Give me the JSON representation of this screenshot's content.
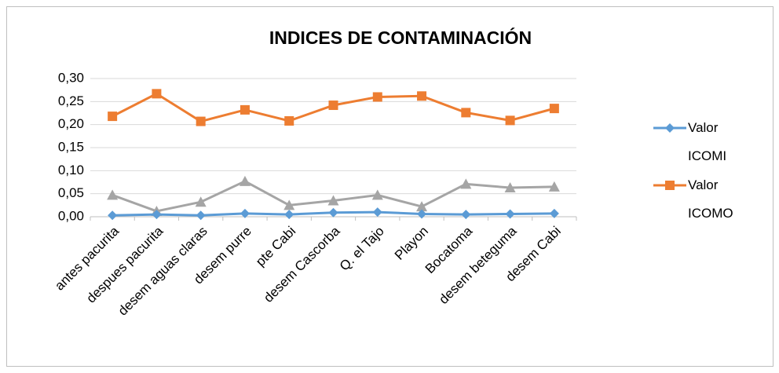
{
  "chart_data": {
    "type": "line",
    "title": "INDICES DE CONTAMINACIÓN",
    "categories": [
      "antes pacurita",
      "despues pacurita",
      "desem aguas claras",
      "desem purre",
      "pte Cabi",
      "desem Cascorba",
      "Q. el Tajo",
      "Playon",
      "Bocatoma",
      "desem beteguma",
      "desem Cabi"
    ],
    "series": [
      {
        "name": "Valor ICOMI",
        "color": "#5b9bd5",
        "marker": "diamond",
        "values": [
          0.003,
          0.005,
          0.003,
          0.007,
          0.005,
          0.009,
          0.01,
          0.006,
          0.005,
          0.006,
          0.007
        ]
      },
      {
        "name": "Valor ICOMO",
        "color": "#ed7d31",
        "marker": "square",
        "values": [
          0.218,
          0.267,
          0.207,
          0.232,
          0.208,
          0.242,
          0.26,
          0.262,
          0.226,
          0.209,
          0.235
        ]
      },
      {
        "color": "#a5a5a5",
        "marker": "triangle",
        "values": [
          0.047,
          0.012,
          0.032,
          0.077,
          0.025,
          0.035,
          0.047,
          0.022,
          0.071,
          0.063,
          0.065
        ]
      }
    ],
    "ylim": [
      0,
      0.3
    ],
    "yticks": [
      {
        "value": 0,
        "label": "0,00"
      },
      {
        "value": 0.05,
        "label": "0,05"
      },
      {
        "value": 0.1,
        "label": "0,10"
      },
      {
        "value": 0.15,
        "label": "0,15"
      },
      {
        "value": 0.2,
        "label": "0,20"
      },
      {
        "value": 0.25,
        "label": "0,25"
      },
      {
        "value": 0.3,
        "label": "0,30"
      }
    ],
    "grid": true,
    "legend": "right"
  }
}
